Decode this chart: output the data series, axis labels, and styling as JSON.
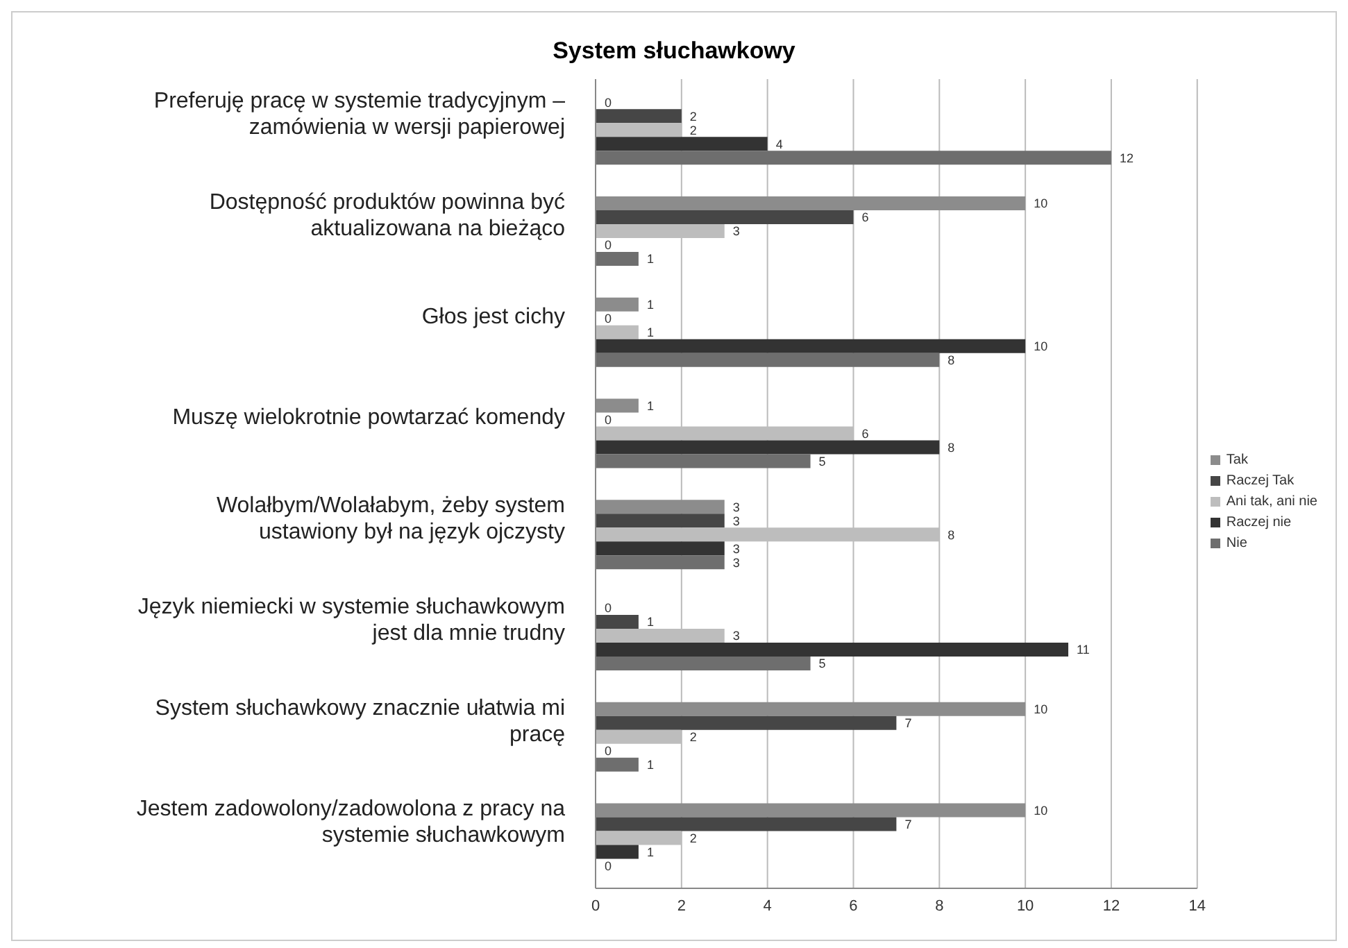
{
  "chart_data": {
    "type": "bar",
    "orientation": "horizontal",
    "title": "System słuchawkowy",
    "categories": [
      "Preferuję pracę w systemie tradycyjnym – zamówienia w wersji papierowej",
      "Dostępność produktów powinna być aktualizowana na bieżąco",
      "Głos jest cichy",
      "Muszę wielokrotnie powtarzać komendy",
      "Wolałbym/Wolałabym, żeby system ustawiony był na język ojczysty",
      "Język niemiecki w systemie słuchawkowym jest dla mnie trudny",
      "System słuchawkowy znacznie ułatwia mi pracę",
      "Jestem zadowolony/zadowolona  z pracy na systemie słuchawkowym"
    ],
    "series": [
      {
        "name": "Tak",
        "color": "#8c8c8c",
        "values": [
          0,
          10,
          1,
          1,
          3,
          0,
          10,
          10
        ]
      },
      {
        "name": "Raczej Tak",
        "color": "#464646",
        "values": [
          2,
          6,
          0,
          0,
          3,
          1,
          7,
          7
        ]
      },
      {
        "name": "Ani tak, ani nie",
        "color": "#bdbdbd",
        "values": [
          2,
          3,
          1,
          6,
          8,
          3,
          2,
          2
        ]
      },
      {
        "name": "Raczej nie",
        "color": "#333333",
        "values": [
          4,
          0,
          10,
          8,
          3,
          11,
          0,
          1
        ]
      },
      {
        "name": "Nie",
        "color": "#6e6e6e",
        "values": [
          12,
          1,
          8,
          5,
          3,
          5,
          1,
          0
        ]
      }
    ],
    "xlim": [
      0,
      14
    ],
    "xticks": [
      0,
      2,
      4,
      6,
      8,
      10,
      12,
      14
    ],
    "grid": "x",
    "legend": "right",
    "data_labels": true
  }
}
